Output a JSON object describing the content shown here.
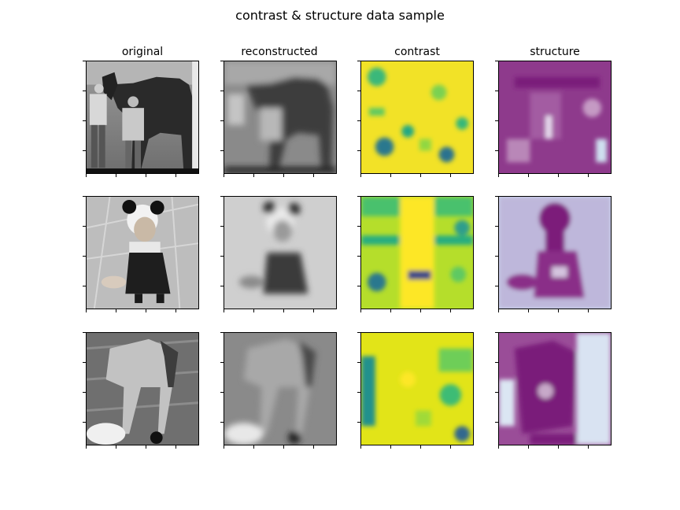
{
  "figure": {
    "title": "contrast & structure data sample",
    "columns": [
      {
        "key": "original",
        "label": "original"
      },
      {
        "key": "reconstructed",
        "label": "reconstructed"
      },
      {
        "key": "contrast",
        "label": "contrast"
      },
      {
        "key": "structure",
        "label": "structure"
      }
    ],
    "rows": [
      {
        "subject": "horse-with-people"
      },
      {
        "subject": "dog-in-panda-hat"
      },
      {
        "subject": "horse-lowering-head"
      }
    ],
    "colormaps": {
      "original": "grayscale",
      "reconstructed": "grayscale-blurred",
      "contrast": "viridis",
      "structure": "blue-white-purple"
    }
  }
}
